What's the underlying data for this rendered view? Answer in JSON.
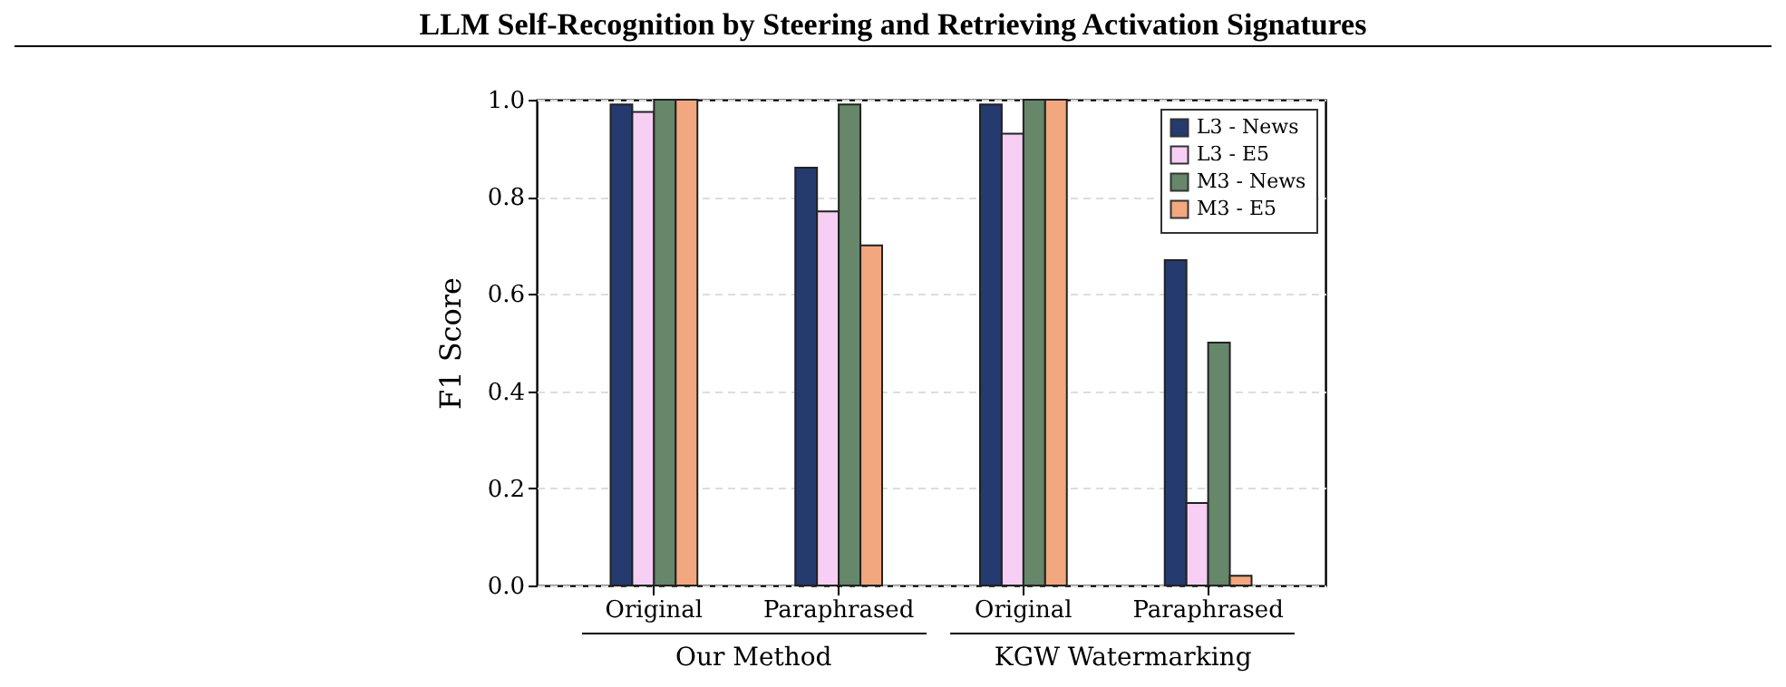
{
  "chart_data": {
    "type": "bar",
    "title": "LLM Self-Recognition by Steering and Retrieving Activation Signatures",
    "ylabel": "F1 Score",
    "categories": [
      "Original",
      "Paraphrased",
      "Original",
      "Paraphrased"
    ],
    "series": [
      {
        "name": "L3 - News",
        "color": "#253a6e",
        "values": [
          0.99,
          0.86,
          0.99,
          0.67
        ]
      },
      {
        "name": "L3 - E5",
        "color": "#f7cff5",
        "values": [
          0.975,
          0.77,
          0.93,
          0.17
        ]
      },
      {
        "name": "M3 - News",
        "color": "#66876a",
        "values": [
          1.0,
          0.99,
          1.0,
          0.5
        ]
      },
      {
        "name": "M3 - E5",
        "color": "#f2a77e",
        "values": [
          1.0,
          0.7,
          1.0,
          0.02
        ]
      }
    ],
    "ylim": [
      0,
      1
    ],
    "yticks": [
      {
        "value": 0,
        "label": "0.0"
      },
      {
        "value": 0.2,
        "label": "0.2"
      },
      {
        "value": 0.4,
        "label": "0.4"
      },
      {
        "value": 0.6,
        "label": "0.6"
      },
      {
        "value": 0.8,
        "label": "0.8"
      },
      {
        "value": 1,
        "label": "1.0"
      }
    ],
    "grid": "y",
    "legend": "top right",
    "annotations": [
      "Our Method",
      "KGW Watermarking"
    ]
  }
}
